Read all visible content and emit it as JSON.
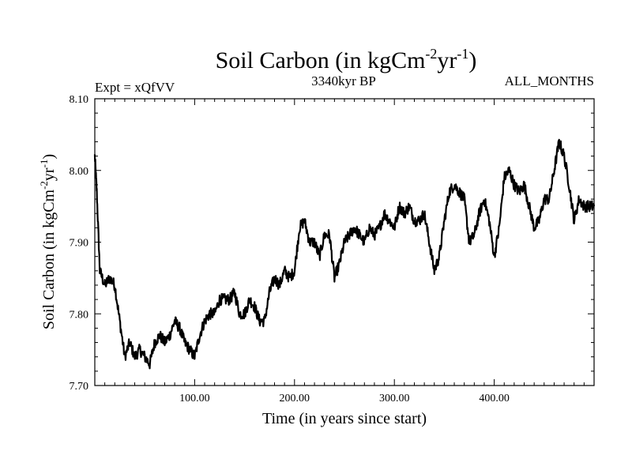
{
  "chart_data": {
    "type": "line",
    "title": {
      "main": "Soil Carbon (in kgCm",
      "sup1": "-2",
      "mid": "yr",
      "sup2": "-1",
      "end": ")"
    },
    "info": {
      "left": "Expt = xQfVV",
      "center": "3340kyr BP",
      "right": "ALL_MONTHS"
    },
    "xlabel": "Time (in years since start)",
    "ylabel": {
      "main": "Soil Carbon (in kgCm",
      "sup1": "-2",
      "mid": "yr",
      "sup2": "-1",
      "end": ")"
    },
    "xlim": [
      0,
      500
    ],
    "ylim": [
      7.7,
      8.1
    ],
    "xticks": [
      100,
      200,
      300,
      400
    ],
    "xtick_labels": [
      "100.00",
      "200.00",
      "300.00",
      "400.00"
    ],
    "yticks": [
      7.7,
      7.8,
      7.9,
      8.0,
      8.1
    ],
    "ytick_labels": [
      "7.70",
      "7.80",
      "7.90",
      "8.00",
      "8.10"
    ],
    "series": [
      {
        "name": "Soil Carbon",
        "color": "#000000",
        "x": [
          0,
          2,
          5,
          10,
          15,
          20,
          25,
          30,
          35,
          40,
          45,
          50,
          55,
          60,
          65,
          70,
          75,
          80,
          85,
          90,
          95,
          100,
          105,
          110,
          115,
          120,
          125,
          130,
          135,
          140,
          145,
          150,
          155,
          160,
          165,
          170,
          175,
          180,
          185,
          190,
          195,
          200,
          205,
          210,
          215,
          220,
          225,
          230,
          235,
          240,
          245,
          250,
          255,
          260,
          265,
          270,
          275,
          280,
          285,
          290,
          295,
          300,
          305,
          310,
          315,
          320,
          325,
          330,
          335,
          340,
          345,
          350,
          355,
          360,
          365,
          370,
          375,
          380,
          385,
          390,
          395,
          400,
          405,
          410,
          415,
          420,
          425,
          430,
          435,
          440,
          445,
          450,
          455,
          460,
          465,
          470,
          475,
          480,
          485,
          490,
          495,
          500
        ],
        "y": [
          8.02,
          7.97,
          7.86,
          7.84,
          7.85,
          7.84,
          7.79,
          7.74,
          7.76,
          7.74,
          7.75,
          7.74,
          7.73,
          7.76,
          7.77,
          7.76,
          7.77,
          7.79,
          7.78,
          7.76,
          7.75,
          7.74,
          7.77,
          7.79,
          7.8,
          7.8,
          7.82,
          7.82,
          7.82,
          7.83,
          7.8,
          7.8,
          7.82,
          7.81,
          7.79,
          7.79,
          7.83,
          7.85,
          7.84,
          7.86,
          7.85,
          7.86,
          7.92,
          7.93,
          7.9,
          7.9,
          7.88,
          7.91,
          7.91,
          7.85,
          7.87,
          7.9,
          7.91,
          7.92,
          7.91,
          7.9,
          7.92,
          7.91,
          7.92,
          7.94,
          7.93,
          7.92,
          7.95,
          7.94,
          7.95,
          7.93,
          7.93,
          7.94,
          7.9,
          7.86,
          7.88,
          7.93,
          7.97,
          7.98,
          7.97,
          7.96,
          7.9,
          7.91,
          7.94,
          7.96,
          7.93,
          7.88,
          7.92,
          7.99,
          8.0,
          7.98,
          7.97,
          7.98,
          7.95,
          7.92,
          7.93,
          7.96,
          7.96,
          8.0,
          8.04,
          8.02,
          7.98,
          7.93,
          7.96,
          7.95,
          7.95,
          7.95
        ]
      }
    ]
  }
}
